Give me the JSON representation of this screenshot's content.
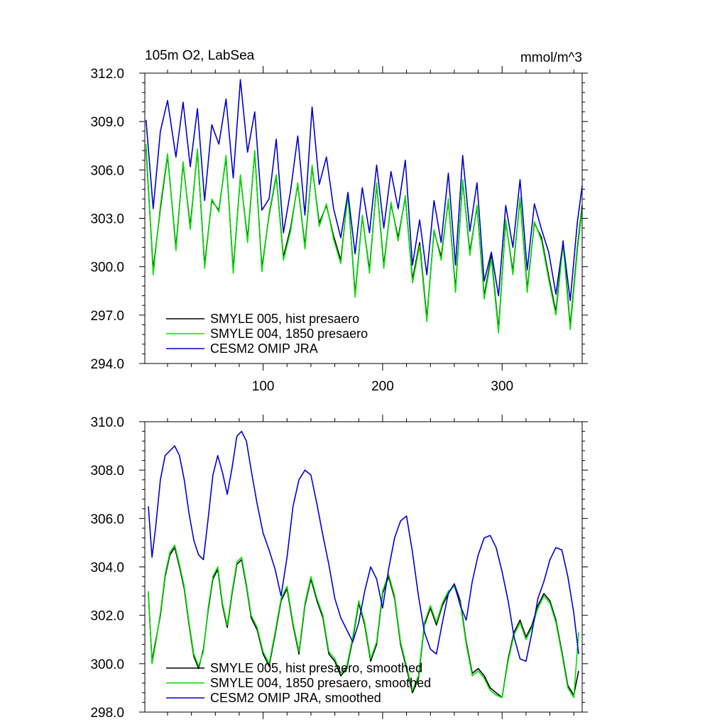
{
  "chart_data": [
    {
      "type": "line",
      "title": "105m O2, LabSea",
      "units": "mmol/m^3",
      "ylim": [
        294,
        312
      ],
      "xlim": [
        1,
        367
      ],
      "y_ticks": [
        "294.0",
        "297.0",
        "300.0",
        "303.0",
        "306.0",
        "309.0",
        "312.0"
      ],
      "x_ticks": [
        "100",
        "200",
        "300"
      ],
      "grid": false,
      "legend_position": "bottom-left",
      "series": [
        {
          "name": "SMYLE 005, hist presaero",
          "color": "#000000",
          "x": [
            2,
            8,
            14,
            20,
            27,
            33,
            39,
            45,
            51,
            57,
            63,
            69,
            75,
            81,
            87,
            93,
            99,
            105,
            111,
            117,
            123,
            129,
            135,
            141,
            147,
            153,
            159,
            165,
            171,
            177,
            183,
            189,
            195,
            201,
            207,
            213,
            219,
            225,
            231,
            237,
            243,
            249,
            255,
            261,
            267,
            273,
            279,
            285,
            291,
            297,
            303,
            309,
            315,
            321,
            327,
            333,
            339,
            345,
            351,
            357,
            363,
            367
          ],
          "values": [
            307.3,
            299.8,
            303.6,
            306.9,
            301.2,
            306.4,
            302.5,
            307.2,
            300.1,
            304.1,
            303.5,
            306.8,
            299.8,
            305.6,
            301.7,
            307.1,
            299.9,
            303.2,
            305.6,
            300.6,
            302.4,
            305.1,
            301.3,
            306.2,
            302.7,
            303.8,
            301.9,
            300.4,
            304.5,
            298.3,
            303.1,
            299.8,
            305.1,
            300.1,
            303.9,
            301.8,
            304.3,
            299.2,
            301.5,
            296.8,
            302.2,
            300.6,
            304.1,
            298.6,
            305.3,
            300.9,
            303.7,
            298.2,
            300.7,
            296.1,
            302.8,
            299.7,
            304.2,
            298.6,
            302.7,
            301.8,
            299.4,
            297.2,
            301.6,
            296.3,
            301.2,
            303.8
          ]
        },
        {
          "name": "SMYLE 004, 1850 presaero",
          "color": "#00e000",
          "x": [
            2,
            8,
            14,
            20,
            27,
            33,
            39,
            45,
            51,
            57,
            63,
            69,
            75,
            81,
            87,
            93,
            99,
            105,
            111,
            117,
            123,
            129,
            135,
            141,
            147,
            153,
            159,
            165,
            171,
            177,
            183,
            189,
            195,
            201,
            207,
            213,
            219,
            225,
            231,
            237,
            243,
            249,
            255,
            261,
            267,
            273,
            279,
            285,
            291,
            297,
            303,
            309,
            315,
            321,
            327,
            333,
            339,
            345,
            351,
            357,
            363,
            367
          ],
          "values": [
            307.6,
            299.5,
            303.8,
            307.0,
            301.0,
            306.5,
            302.3,
            307.3,
            299.9,
            304.2,
            303.4,
            306.9,
            299.6,
            305.7,
            301.5,
            307.2,
            299.7,
            303.3,
            305.7,
            300.4,
            302.2,
            305.2,
            301.1,
            306.3,
            302.5,
            303.9,
            301.7,
            300.2,
            304.6,
            298.1,
            303.2,
            299.6,
            305.2,
            299.9,
            304.0,
            301.6,
            304.4,
            299.0,
            301.3,
            296.6,
            302.3,
            300.4,
            304.2,
            298.4,
            305.4,
            300.7,
            303.8,
            298.0,
            300.5,
            295.9,
            302.9,
            299.5,
            304.3,
            298.4,
            302.8,
            301.6,
            299.2,
            297.0,
            301.4,
            296.1,
            301.0,
            303.6
          ]
        },
        {
          "name": "CESM2 OMIP JRA",
          "color": "#0000d0",
          "x": [
            2,
            8,
            14,
            20,
            27,
            33,
            39,
            45,
            51,
            57,
            63,
            69,
            75,
            81,
            87,
            93,
            99,
            105,
            111,
            117,
            123,
            129,
            135,
            141,
            147,
            153,
            159,
            165,
            171,
            177,
            183,
            189,
            195,
            201,
            207,
            213,
            219,
            225,
            231,
            237,
            243,
            249,
            255,
            261,
            267,
            273,
            279,
            285,
            291,
            297,
            303,
            309,
            315,
            321,
            327,
            333,
            339,
            345,
            351,
            357,
            363,
            367
          ],
          "values": [
            309.1,
            303.6,
            308.4,
            310.3,
            306.8,
            310.2,
            306.2,
            309.8,
            304.1,
            308.8,
            307.6,
            310.4,
            305.5,
            311.6,
            307.1,
            309.6,
            303.5,
            304.2,
            307.9,
            302.1,
            304.7,
            308.1,
            303.2,
            309.9,
            305.1,
            306.8,
            303.6,
            301.8,
            304.6,
            300.8,
            304.9,
            302.1,
            306.3,
            302.4,
            305.9,
            303.6,
            306.6,
            300.1,
            302.9,
            299.5,
            304.1,
            301.5,
            305.8,
            300.1,
            306.9,
            302.2,
            305.2,
            299.1,
            300.9,
            298.2,
            303.8,
            301.2,
            305.4,
            299.8,
            303.9,
            302.3,
            300.9,
            298.3,
            301.5,
            297.9,
            302.8,
            305.0
          ]
        }
      ]
    },
    {
      "type": "line",
      "ylim": [
        298,
        310
      ],
      "xlim": [
        1,
        367
      ],
      "y_ticks": [
        "298.0",
        "300.0",
        "302.0",
        "304.0",
        "306.0",
        "308.0",
        "310.0"
      ],
      "grid": false,
      "legend_position": "bottom-left",
      "series": [
        {
          "name": "SMYLE 005, hist presaero, smoothed",
          "color": "#000000",
          "x": [
            4,
            7,
            10,
            14,
            18,
            22,
            26,
            30,
            34,
            38,
            42,
            46,
            50,
            54,
            58,
            62,
            66,
            70,
            74,
            78,
            82,
            86,
            90,
            95,
            100,
            105,
            110,
            115,
            120,
            125,
            130,
            135,
            140,
            145,
            150,
            155,
            160,
            165,
            170,
            175,
            180,
            185,
            190,
            195,
            200,
            205,
            210,
            215,
            220,
            225,
            230,
            235,
            240,
            245,
            250,
            255,
            260,
            265,
            270,
            275,
            280,
            285,
            290,
            295,
            300,
            305,
            310,
            315,
            320,
            325,
            330,
            335,
            340,
            345,
            350,
            355,
            360,
            364
          ],
          "values": [
            302.9,
            300.1,
            300.9,
            302.0,
            303.6,
            304.5,
            304.8,
            304.0,
            303.1,
            301.6,
            300.3,
            299.8,
            300.6,
            302.2,
            303.5,
            303.9,
            302.4,
            301.5,
            302.9,
            304.1,
            304.3,
            303.2,
            301.9,
            301.4,
            300.4,
            299.9,
            301.2,
            302.6,
            303.1,
            301.6,
            300.4,
            302.4,
            303.5,
            302.6,
            301.9,
            300.4,
            300.1,
            299.5,
            299.8,
            301.0,
            302.5,
            301.6,
            300.1,
            300.8,
            302.9,
            303.6,
            302.7,
            300.8,
            299.8,
            298.8,
            299.4,
            301.6,
            302.3,
            301.6,
            302.4,
            302.9,
            303.3,
            302.6,
            300.9,
            299.6,
            299.8,
            299.5,
            299.0,
            298.8,
            298.6,
            300.2,
            301.3,
            301.8,
            301.1,
            301.6,
            302.4,
            302.9,
            302.6,
            301.8,
            300.5,
            299.1,
            298.7,
            299.7
          ]
        },
        {
          "name": "SMYLE 004, 1850 presaero, smoothed",
          "color": "#00e000",
          "x": [
            4,
            7,
            10,
            14,
            18,
            22,
            26,
            30,
            34,
            38,
            42,
            46,
            50,
            54,
            58,
            62,
            66,
            70,
            74,
            78,
            82,
            86,
            90,
            95,
            100,
            105,
            110,
            115,
            120,
            125,
            130,
            135,
            140,
            145,
            150,
            155,
            160,
            165,
            170,
            175,
            180,
            185,
            190,
            195,
            200,
            205,
            210,
            215,
            220,
            225,
            230,
            235,
            240,
            245,
            250,
            255,
            260,
            265,
            270,
            275,
            280,
            285,
            290,
            295,
            300,
            305,
            310,
            315,
            320,
            325,
            330,
            335,
            340,
            345,
            350,
            355,
            360,
            364
          ],
          "values": [
            303.0,
            300.0,
            300.8,
            302.1,
            303.7,
            304.6,
            304.9,
            304.1,
            303.2,
            301.7,
            300.4,
            299.9,
            300.5,
            302.3,
            303.6,
            304.0,
            302.5,
            301.6,
            303.0,
            304.2,
            304.4,
            303.3,
            302.0,
            301.5,
            300.5,
            300.0,
            301.3,
            302.7,
            303.2,
            301.7,
            300.5,
            302.5,
            303.6,
            302.7,
            302.0,
            300.5,
            300.2,
            299.6,
            299.9,
            301.1,
            302.6,
            301.7,
            300.2,
            300.9,
            303.0,
            303.7,
            302.8,
            300.9,
            299.9,
            298.9,
            299.5,
            301.7,
            302.4,
            301.7,
            302.5,
            303.0,
            303.2,
            302.5,
            300.8,
            299.5,
            299.7,
            299.4,
            298.9,
            298.7,
            298.6,
            300.1,
            301.2,
            301.7,
            301.0,
            301.5,
            302.3,
            302.8,
            302.5,
            301.7,
            300.4,
            299.0,
            298.6,
            301.3
          ]
        },
        {
          "name": "CESM2 OMIP JRA, smoothed",
          "color": "#0000d0",
          "x": [
            4,
            7,
            10,
            14,
            18,
            22,
            26,
            30,
            34,
            38,
            42,
            46,
            50,
            54,
            58,
            62,
            66,
            70,
            74,
            78,
            82,
            86,
            90,
            95,
            100,
            105,
            110,
            115,
            120,
            125,
            130,
            135,
            140,
            145,
            150,
            155,
            160,
            165,
            170,
            175,
            180,
            185,
            190,
            195,
            200,
            205,
            210,
            215,
            220,
            225,
            230,
            235,
            240,
            245,
            250,
            255,
            260,
            265,
            270,
            275,
            280,
            285,
            290,
            295,
            300,
            305,
            310,
            315,
            320,
            325,
            330,
            335,
            340,
            345,
            350,
            355,
            360,
            364
          ],
          "values": [
            306.5,
            304.4,
            305.6,
            307.6,
            308.6,
            308.8,
            309.0,
            308.6,
            307.6,
            306.2,
            305.1,
            304.5,
            304.3,
            306.0,
            307.8,
            308.6,
            307.9,
            307.0,
            308.1,
            309.4,
            309.6,
            309.2,
            308.0,
            306.6,
            305.4,
            304.7,
            303.9,
            302.8,
            304.4,
            306.5,
            307.6,
            308.0,
            307.8,
            306.6,
            305.3,
            304.1,
            302.7,
            301.9,
            301.4,
            300.9,
            301.7,
            303.0,
            304.0,
            303.5,
            302.3,
            303.9,
            305.2,
            305.9,
            306.1,
            304.6,
            302.8,
            301.3,
            300.6,
            300.4,
            301.7,
            302.9,
            303.3,
            302.4,
            301.8,
            303.4,
            304.5,
            305.2,
            305.3,
            304.8,
            303.8,
            302.6,
            301.1,
            300.2,
            300.1,
            301.3,
            302.7,
            303.4,
            304.3,
            304.8,
            304.7,
            303.6,
            302.1,
            300.4
          ]
        }
      ]
    }
  ]
}
